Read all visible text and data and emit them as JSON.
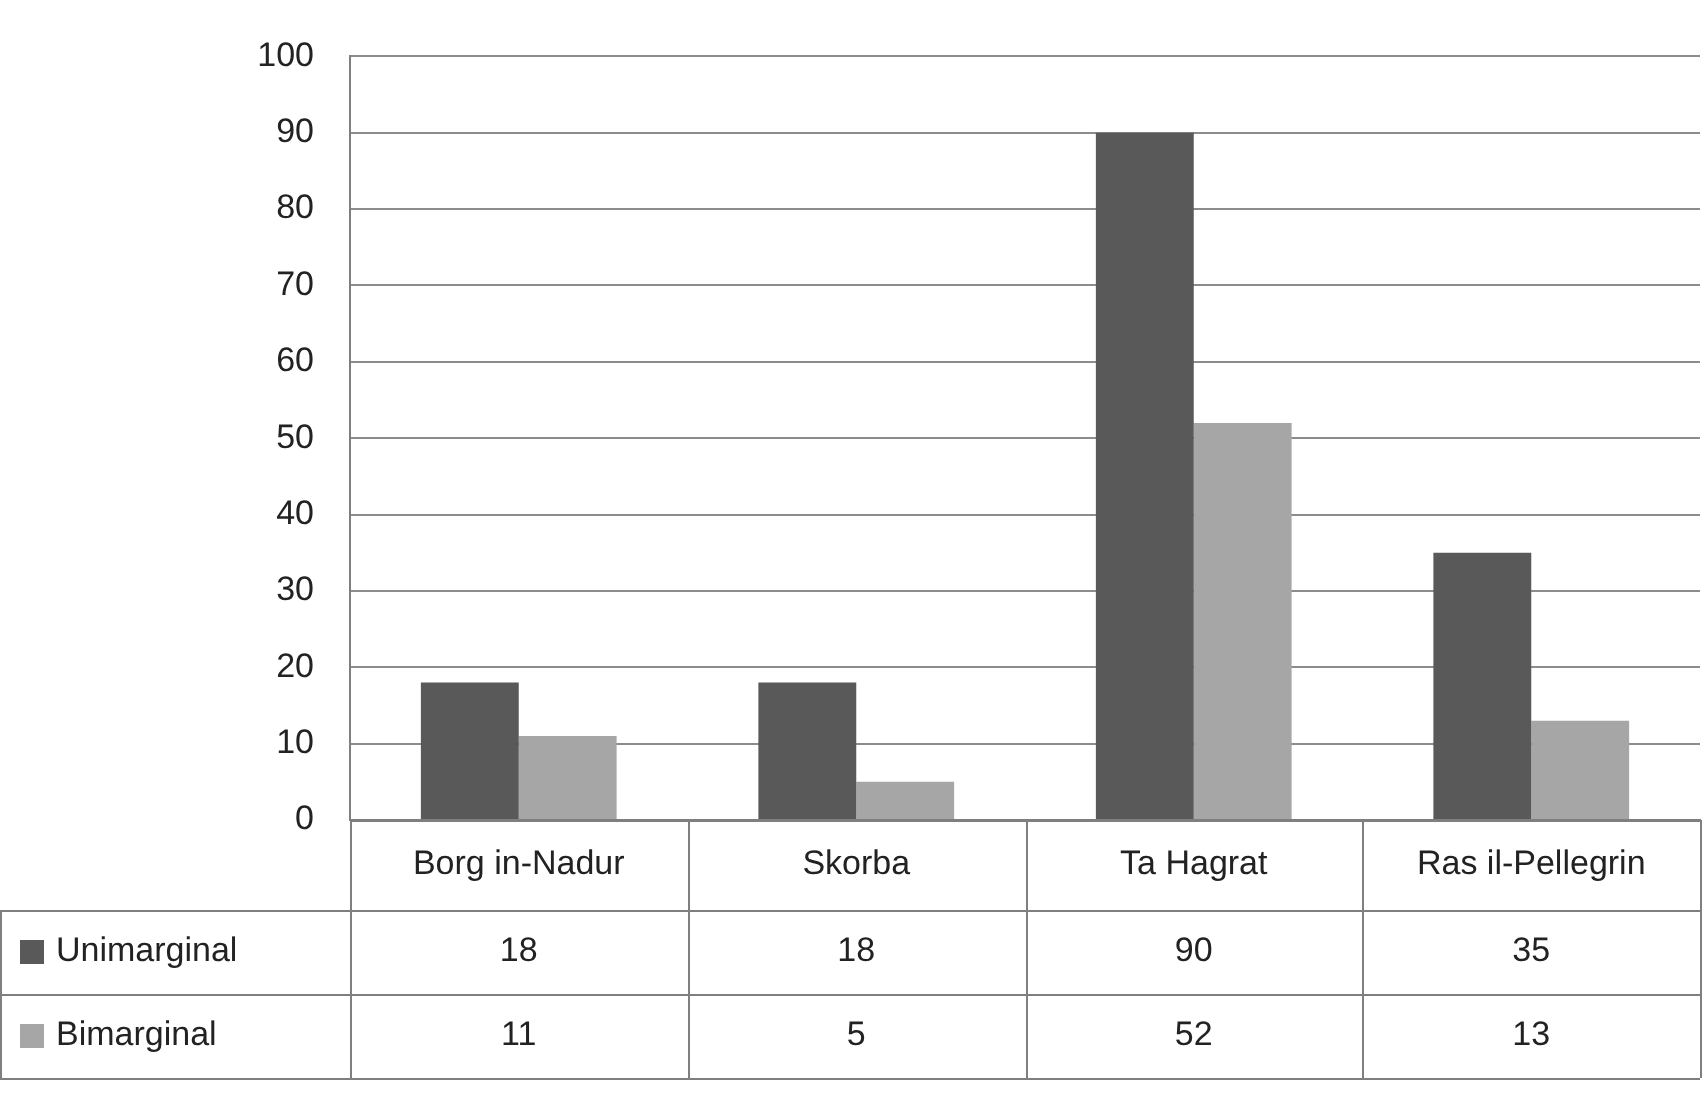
{
  "chart_data": {
    "type": "bar",
    "categories": [
      "Borg in-Nadur",
      "Skorba",
      "Ta Hagrat",
      "Ras il-Pellegrin"
    ],
    "series": [
      {
        "name": "Unimarginal",
        "color": "#595959",
        "values": [
          18,
          18,
          90,
          35
        ]
      },
      {
        "name": "Bimarginal",
        "color": "#a6a6a6",
        "values": [
          11,
          5,
          52,
          13
        ]
      }
    ],
    "ylim": [
      0,
      100
    ],
    "yticks": [
      0,
      10,
      20,
      30,
      40,
      50,
      60,
      70,
      80,
      90,
      100
    ],
    "grid": "y",
    "legend": "bottom left",
    "data_labels": true
  }
}
